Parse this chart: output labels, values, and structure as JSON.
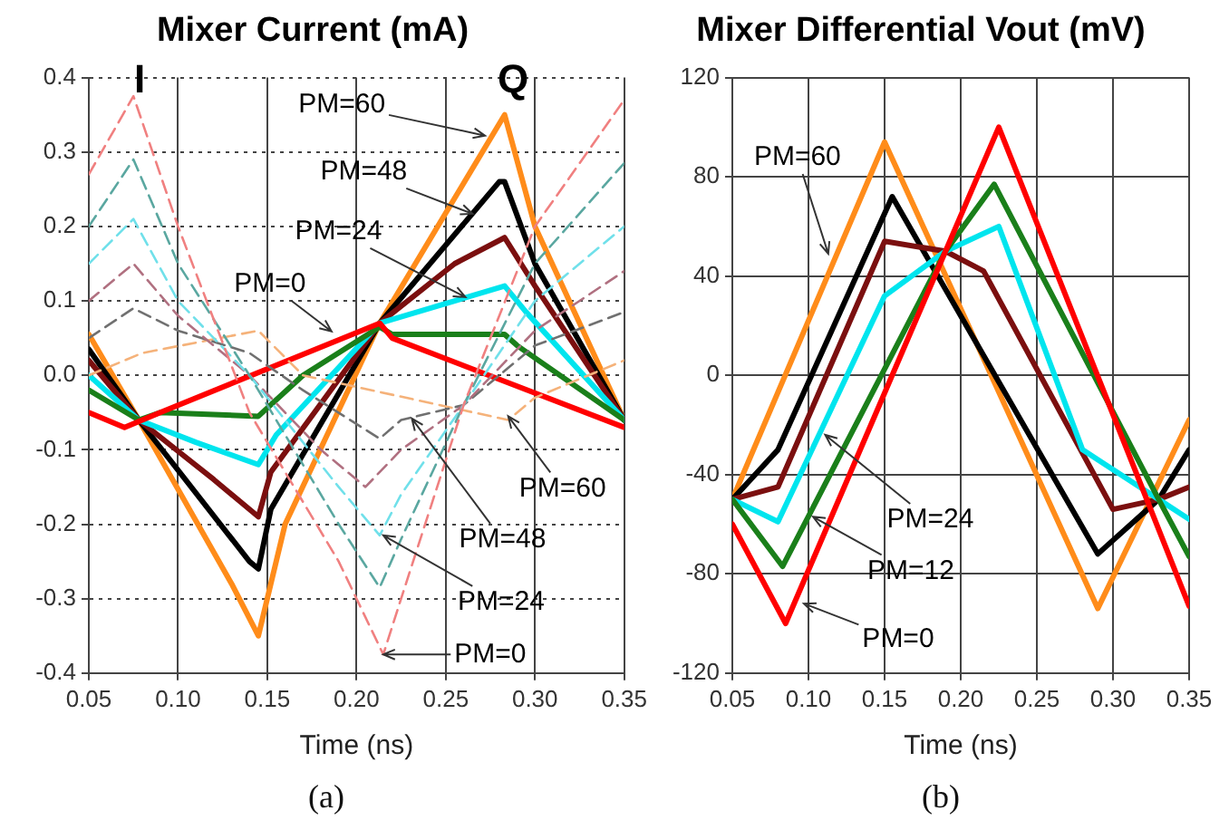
{
  "chart_data": [
    {
      "type": "line",
      "title": "Mixer Current (mA)",
      "xlabel": "Time (ns)",
      "xlim": [
        0.05,
        0.35
      ],
      "xticks": [
        0.05,
        {
          "value": 0.1,
          "label": "0.10"
        },
        0.15,
        {
          "value": 0.2,
          "label": "0.20"
        },
        0.25,
        {
          "value": 0.3,
          "label": "0.30"
        },
        0.35
      ],
      "ylim": [
        -0.4,
        0.4
      ],
      "yticks": [
        -0.4,
        -0.3,
        -0.2,
        -0.1,
        {
          "value": 0,
          "label": "0.0"
        },
        0.1,
        0.2,
        0.3,
        0.4
      ],
      "grid": true,
      "legend": false,
      "marker": "none",
      "series": [
        {
          "color": "#f08080",
          "line_style": "dashed",
          "x": [
            0.05,
            0.075,
            0.1,
            0.14,
            0.19,
            0.215,
            0.225,
            0.26,
            0.3,
            0.35
          ],
          "values": [
            0.27,
            0.375,
            0.2,
            -0.05,
            -0.25,
            -0.375,
            -0.3,
            -0.04,
            0.2,
            0.37
          ]
        },
        {
          "color": "#5aa7a0",
          "line_style": "dashed",
          "x": [
            0.05,
            0.075,
            0.1,
            0.14,
            0.19,
            0.213,
            0.225,
            0.26,
            0.3,
            0.35
          ],
          "values": [
            0.2,
            0.29,
            0.15,
            0.0,
            -0.2,
            -0.285,
            -0.22,
            -0.04,
            0.15,
            0.285
          ]
        },
        {
          "color": "#70e0ea",
          "line_style": "dashed",
          "x": [
            0.05,
            0.075,
            0.1,
            0.14,
            0.19,
            0.213,
            0.225,
            0.26,
            0.3,
            0.35
          ],
          "values": [
            0.15,
            0.21,
            0.1,
            0.0,
            -0.15,
            -0.215,
            -0.16,
            -0.04,
            0.1,
            0.2
          ]
        },
        {
          "color": "#b07080",
          "line_style": "dashed",
          "x": [
            0.05,
            0.075,
            0.1,
            0.14,
            0.18,
            0.205,
            0.225,
            0.26,
            0.3,
            0.35
          ],
          "values": [
            0.1,
            0.15,
            0.08,
            0.0,
            -0.1,
            -0.15,
            -0.1,
            -0.04,
            0.06,
            0.14
          ]
        },
        {
          "color": "#707070",
          "line_style": "dashed",
          "x": [
            0.05,
            0.075,
            0.1,
            0.14,
            0.17,
            0.213,
            0.225,
            0.26,
            0.3,
            0.35
          ],
          "values": [
            0.05,
            0.09,
            0.06,
            0.03,
            -0.02,
            -0.085,
            -0.06,
            -0.04,
            0.04,
            0.085
          ]
        },
        {
          "color": "#f5b27a",
          "line_style": "dashed",
          "x": [
            0.05,
            0.08,
            0.145,
            0.17,
            0.285,
            0.3,
            0.35
          ],
          "values": [
            0.0,
            0.03,
            0.06,
            0.0,
            -0.06,
            -0.03,
            0.02
          ]
        },
        {
          "color": "#ff0000",
          "line_style": "solid",
          "x": [
            0.05,
            0.07,
            0.09,
            0.213,
            0.22,
            0.35
          ],
          "values": [
            -0.05,
            -0.07,
            -0.05,
            0.07,
            0.05,
            -0.07
          ]
        },
        {
          "color": "#1a7f1a",
          "line_style": "solid",
          "x": [
            0.05,
            0.078,
            0.09,
            0.145,
            0.17,
            0.213,
            0.22,
            0.283,
            0.29,
            0.35
          ],
          "values": [
            -0.02,
            -0.06,
            -0.05,
            -0.055,
            0.0,
            0.065,
            0.055,
            0.055,
            0.04,
            -0.06
          ]
        },
        {
          "color": "#00e5ee",
          "line_style": "solid",
          "x": [
            0.05,
            0.078,
            0.11,
            0.145,
            0.155,
            0.213,
            0.283,
            0.295,
            0.35
          ],
          "values": [
            0.0,
            -0.06,
            -0.09,
            -0.12,
            -0.08,
            0.07,
            0.12,
            0.085,
            -0.06
          ]
        },
        {
          "color": "#7b0f0f",
          "line_style": "solid",
          "x": [
            0.05,
            0.078,
            0.12,
            0.145,
            0.152,
            0.213,
            0.255,
            0.283,
            0.3,
            0.35
          ],
          "values": [
            0.02,
            -0.06,
            -0.14,
            -0.19,
            -0.13,
            0.07,
            0.15,
            0.185,
            0.12,
            -0.06
          ]
        },
        {
          "color": "#000000",
          "line_style": "solid",
          "x": [
            0.05,
            0.078,
            0.14,
            0.145,
            0.152,
            0.213,
            0.28,
            0.283,
            0.3,
            0.35
          ],
          "values": [
            0.035,
            -0.06,
            -0.25,
            -0.26,
            -0.18,
            0.07,
            0.26,
            0.26,
            0.15,
            -0.06
          ]
        },
        {
          "color": "#ff8c1a",
          "line_style": "solid",
          "x": [
            0.05,
            0.078,
            0.13,
            0.145,
            0.16,
            0.213,
            0.283,
            0.3,
            0.35
          ],
          "values": [
            0.055,
            -0.06,
            -0.28,
            -0.35,
            -0.2,
            0.07,
            0.35,
            0.2,
            -0.06
          ]
        }
      ],
      "annotations": [
        "I",
        "Q",
        {
          "text": "PM=60",
          "x": 0.272,
          "y": 0.322
        },
        {
          "text": "PM=48",
          "x": 0.265,
          "y": 0.217
        },
        {
          "text": "PM=24",
          "x": 0.261,
          "y": 0.105
        },
        {
          "text": "PM=0",
          "x": 0.186,
          "y": 0.059
        },
        {
          "text": "PM=60",
          "x": 0.285,
          "y": -0.055
        },
        {
          "text": "PM=48",
          "x": 0.231,
          "y": -0.058
        },
        {
          "text": "PM=24",
          "x": 0.215,
          "y": -0.215
        },
        {
          "text": "PM=0",
          "x": 0.215,
          "y": -0.375
        },
        "(a)"
      ]
    },
    {
      "type": "line",
      "title": "Mixer Differential Vout (mV)",
      "xlabel": "Time (ns)",
      "xlim": [
        0.05,
        0.35
      ],
      "xticks": [
        0.05,
        {
          "value": 0.1,
          "label": "0.10"
        },
        0.15,
        {
          "value": 0.2,
          "label": "0.20"
        },
        0.25,
        {
          "value": 0.3,
          "label": "0.30"
        },
        0.35
      ],
      "ylim": [
        -120,
        120
      ],
      "yticks": [
        -120,
        -80,
        -40,
        0,
        40,
        80,
        120
      ],
      "grid": true,
      "legend": false,
      "marker": "none",
      "series": [
        {
          "color": "#ff0000",
          "x": [
            0.05,
            0.085,
            0.225,
            0.35
          ],
          "values": [
            -60,
            -100,
            100,
            -93
          ]
        },
        {
          "color": "#1a7f1a",
          "x": [
            0.05,
            0.083,
            0.19,
            0.222,
            0.33,
            0.35
          ],
          "values": [
            -50,
            -77,
            50,
            77,
            -50,
            -73
          ]
        },
        {
          "color": "#00e5ee",
          "x": [
            0.05,
            0.08,
            0.15,
            0.19,
            0.225,
            0.28,
            0.33,
            0.35
          ],
          "values": [
            -50,
            -59,
            32,
            50,
            60,
            -30,
            -50,
            -58
          ]
        },
        {
          "color": "#7b0f0f",
          "x": [
            0.05,
            0.08,
            0.15,
            0.19,
            0.215,
            0.3,
            0.33,
            0.35
          ],
          "values": [
            -50,
            -45,
            54,
            50,
            42,
            -54,
            -50,
            -45
          ]
        },
        {
          "color": "#000000",
          "x": [
            0.05,
            0.08,
            0.155,
            0.29,
            0.33,
            0.35
          ],
          "values": [
            -50,
            -30,
            72,
            -72,
            -50,
            -30
          ]
        },
        {
          "color": "#ff8c1a",
          "x": [
            0.05,
            0.15,
            0.29,
            0.35
          ],
          "values": [
            -50,
            94,
            -94,
            -18
          ]
        }
      ],
      "annotations": [
        {
          "text": "PM=60",
          "x": 0.113,
          "y": 49
        },
        {
          "text": "PM=24",
          "x": 0.111,
          "y": -24
        },
        {
          "text": "PM=12",
          "x": 0.103,
          "y": -57
        },
        {
          "text": "PM=0",
          "x": 0.097,
          "y": -92
        },
        "(b)"
      ]
    }
  ]
}
